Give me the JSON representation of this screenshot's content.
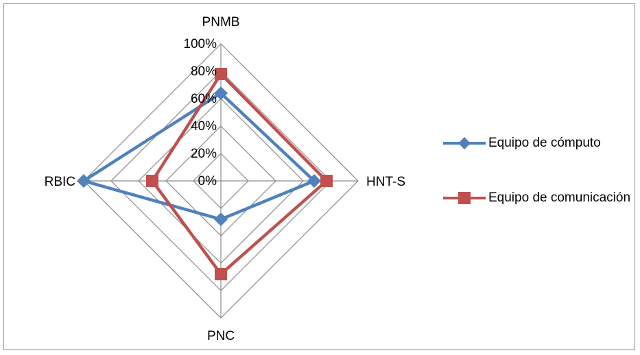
{
  "chart_data": {
    "type": "radar",
    "axes": [
      "PNMB",
      "HNT-S",
      "PNC",
      "RBIC"
    ],
    "tick_labels": [
      "0%",
      "20%",
      "40%",
      "60%",
      "80%",
      "100%"
    ],
    "rmax": 100,
    "series": [
      {
        "name": "Equipo de cómputo",
        "values": [
          64,
          68,
          28,
          100
        ],
        "color": "#4f81bd",
        "marker": "diamond"
      },
      {
        "name": "Equipo de comunicación",
        "values": [
          78,
          77,
          68,
          50
        ],
        "color": "#c0504d",
        "marker": "square"
      }
    ],
    "grid": true,
    "legend_position": "right"
  }
}
